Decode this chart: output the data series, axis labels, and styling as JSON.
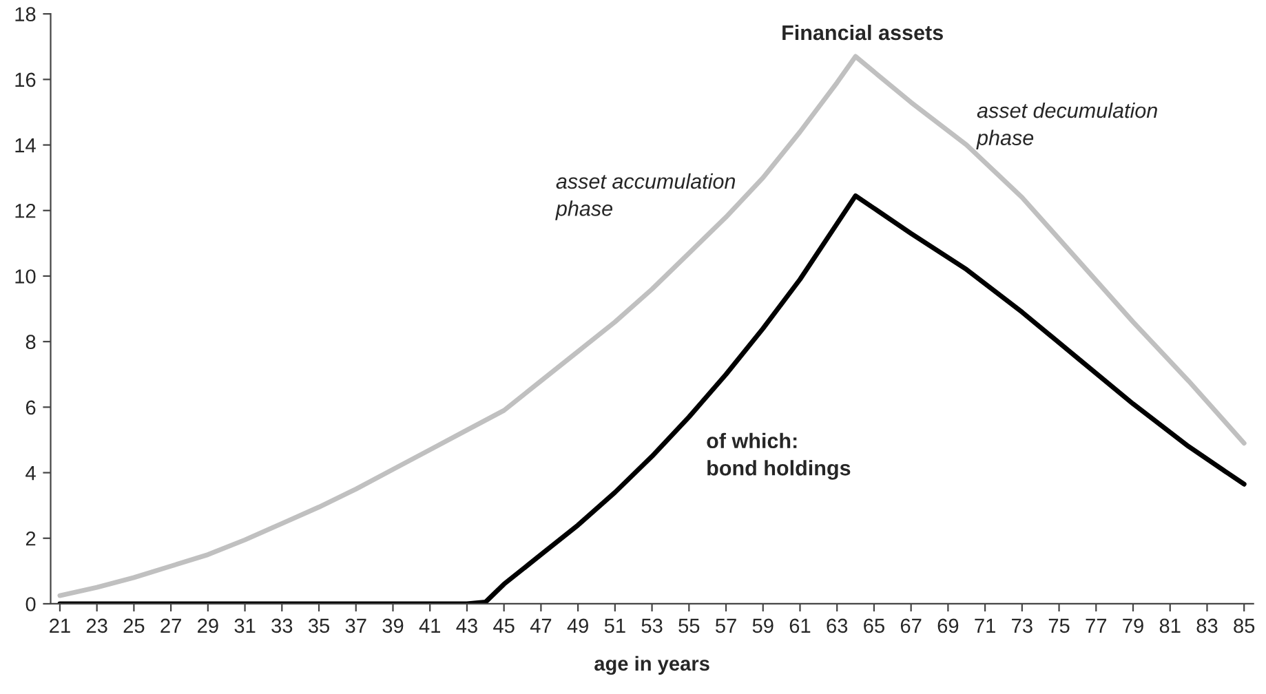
{
  "chart_data": {
    "type": "line",
    "xlabel": "age in years",
    "series": [
      {
        "color": "#c0c0c0",
        "x": [
          21,
          23,
          25,
          27,
          29,
          31,
          33,
          35,
          37,
          39,
          41,
          43,
          45,
          47,
          49,
          51,
          53,
          55,
          57,
          59,
          61,
          63,
          64,
          67,
          70,
          73,
          76,
          79,
          82,
          85
        ],
        "values": [
          0.25,
          0.5,
          0.8,
          1.15,
          1.5,
          1.95,
          2.45,
          2.95,
          3.5,
          4.1,
          4.7,
          5.3,
          5.9,
          6.8,
          7.7,
          8.6,
          9.6,
          10.7,
          11.8,
          13.0,
          14.4,
          15.9,
          16.7,
          15.3,
          14.0,
          12.4,
          10.5,
          8.6,
          6.8,
          4.9
        ]
      },
      {
        "color": "#000000",
        "x": [
          21,
          25,
          30,
          35,
          40,
          43,
          44,
          45,
          47,
          49,
          51,
          53,
          55,
          57,
          59,
          61,
          63,
          64,
          67,
          70,
          73,
          76,
          79,
          82,
          85
        ],
        "values": [
          0,
          0,
          0,
          0,
          0,
          0,
          0.05,
          0.6,
          1.5,
          2.4,
          3.4,
          4.5,
          5.7,
          7.0,
          8.4,
          9.9,
          11.6,
          12.45,
          11.3,
          10.2,
          8.9,
          7.5,
          6.1,
          4.8,
          3.65
        ]
      }
    ],
    "annotations": [
      "Financial assets",
      "asset accumulation\nphase",
      "asset decumulation\nphase",
      "of which:\nbond holdings"
    ],
    "xlim": [
      20.5,
      85.5
    ],
    "xticks": [
      21,
      23,
      25,
      27,
      29,
      31,
      33,
      35,
      37,
      39,
      41,
      43,
      45,
      47,
      49,
      51,
      53,
      55,
      57,
      59,
      61,
      63,
      65,
      67,
      69,
      71,
      73,
      75,
      77,
      79,
      81,
      83,
      85
    ],
    "ylim": [
      0,
      18
    ],
    "yticks": [
      0,
      2,
      4,
      6,
      8,
      10,
      12,
      14,
      16,
      18
    ],
    "grid": false,
    "marker": "none",
    "line_style": "solid"
  }
}
